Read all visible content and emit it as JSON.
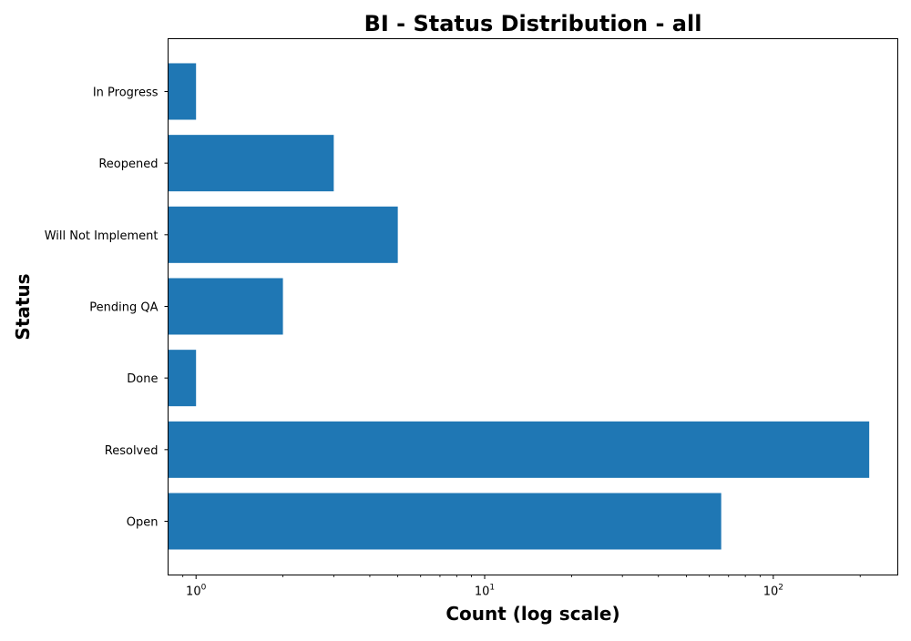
{
  "chart_data": {
    "type": "bar",
    "orientation": "horizontal",
    "title": "BI - Status Distribution - all",
    "xlabel": "Count (log scale)",
    "ylabel": "Status",
    "x_scale": "log",
    "xlim": [
      0.8,
      270
    ],
    "x_ticks": [
      {
        "value": 1,
        "base": "10",
        "exponent": "0"
      },
      {
        "value": 10,
        "base": "10",
        "exponent": "1"
      },
      {
        "value": 100,
        "base": "10",
        "exponent": "2"
      }
    ],
    "categories": [
      "Open",
      "Resolved",
      "Done",
      "Pending QA",
      "Will Not Implement",
      "Reopened",
      "In Progress"
    ],
    "values": [
      66,
      215,
      1,
      2,
      5,
      3,
      1
    ],
    "bar_color": "#1f77b4",
    "grid": false,
    "legend": "none"
  }
}
